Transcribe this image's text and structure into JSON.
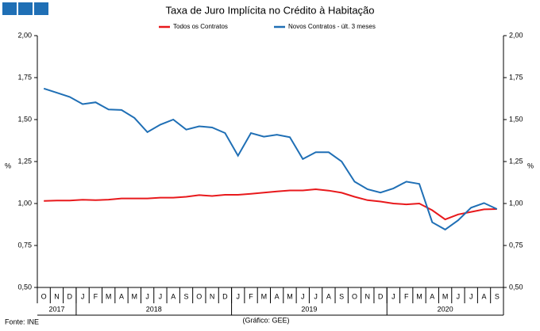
{
  "chart_data": {
    "type": "line",
    "title": "Taxa de Juro Implícita no Crédito à Habitação",
    "y_label": "%",
    "y2_label": "%",
    "categories": [
      "O",
      "N",
      "D",
      "J",
      "F",
      "M",
      "A",
      "M",
      "J",
      "J",
      "A",
      "S",
      "O",
      "N",
      "D",
      "J",
      "F",
      "M",
      "A",
      "M",
      "J",
      "J",
      "A",
      "S",
      "O",
      "N",
      "D",
      "J",
      "F",
      "M",
      "A",
      "M",
      "J",
      "J",
      "A",
      "S"
    ],
    "years": [
      "2017",
      "2018",
      "2019",
      "2020"
    ],
    "series": [
      {
        "name": "Todos os Contratos",
        "color": "#e8191c",
        "values": [
          1.015,
          1.018,
          1.018,
          1.022,
          1.02,
          1.023,
          1.03,
          1.03,
          1.03,
          1.035,
          1.035,
          1.04,
          1.05,
          1.045,
          1.052,
          1.052,
          1.058,
          1.065,
          1.072,
          1.078,
          1.078,
          1.085,
          1.077,
          1.064,
          1.04,
          1.02,
          1.012,
          1.0,
          0.995,
          1.0,
          0.96,
          0.905,
          0.935,
          0.95,
          0.965,
          0.967
        ]
      },
      {
        "name": "Novos Contratos - últ. 3 meses",
        "color": "#1f6fb5",
        "values": [
          1.685,
          1.66,
          1.635,
          1.592,
          1.603,
          1.56,
          1.557,
          1.51,
          1.425,
          1.47,
          1.5,
          1.44,
          1.46,
          1.453,
          1.42,
          1.285,
          1.42,
          1.398,
          1.41,
          1.395,
          1.265,
          1.305,
          1.305,
          1.25,
          1.13,
          1.085,
          1.065,
          1.09,
          1.13,
          1.117,
          0.888,
          0.845,
          0.9,
          0.975,
          1.003,
          0.967
        ]
      }
    ],
    "ylim": [
      0.5,
      2.0
    ],
    "yticks": [
      {
        "value": 0.5,
        "label": "0,50"
      },
      {
        "value": 0.75,
        "label": "0,75"
      },
      {
        "value": 1.0,
        "label": "1,00"
      },
      {
        "value": 1.25,
        "label": "1,25"
      },
      {
        "value": 1.5,
        "label": "1,50"
      },
      {
        "value": 1.75,
        "label": "1,75"
      },
      {
        "value": 2.0,
        "label": "2,00"
      }
    ],
    "y2lim": [
      0.5,
      2.0
    ],
    "y2ticks": [
      {
        "value": 0.5,
        "label": "0,50"
      },
      {
        "value": 0.75,
        "label": "0,75"
      },
      {
        "value": 1.0,
        "label": "1,00"
      },
      {
        "value": 1.25,
        "label": "1,25"
      },
      {
        "value": 1.5,
        "label": "1,50"
      },
      {
        "value": 1.75,
        "label": "1,75"
      },
      {
        "value": 2.0,
        "label": "2,00"
      }
    ],
    "source": "Fonte: INE",
    "credit": "(Gráfico: GEE)"
  }
}
